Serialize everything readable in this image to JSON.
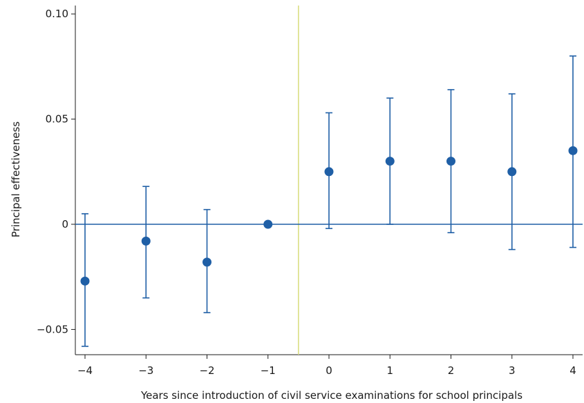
{
  "chart_data": {
    "type": "scatter",
    "title": "",
    "xlabel": "Years since introduction of civil service examinations for school principals",
    "ylabel": "Principal effectiveness",
    "xlim": [
      -4,
      4
    ],
    "ylim": [
      -0.062,
      0.104
    ],
    "x_ticks": [
      -4,
      -3,
      -2,
      -1,
      0,
      1,
      2,
      3,
      4
    ],
    "x_tick_labels": [
      "−4",
      "−3",
      "−2",
      "−1",
      "0",
      "1",
      "2",
      "3",
      "4"
    ],
    "y_ticks": [
      -0.05,
      0,
      0.05,
      0.1
    ],
    "y_tick_labels": [
      "−0.05",
      "0",
      "0.05",
      "0.10"
    ],
    "grid": false,
    "legend": "none",
    "reference_lines": {
      "horizontal_y": 0,
      "vertical_x": -0.5
    },
    "colors": {
      "points": "#1f5fa6",
      "reference_horizontal": "#1f5fa6",
      "reference_vertical": "#d8dc7a",
      "axis": "#1a1a1a"
    },
    "series": [
      {
        "x": [
          -4,
          -3,
          -2,
          -1,
          0,
          1,
          2,
          3,
          4
        ],
        "y": [
          -0.027,
          -0.008,
          -0.018,
          0.0,
          0.025,
          0.03,
          0.03,
          0.025,
          0.035
        ],
        "ci_low": [
          -0.058,
          -0.035,
          -0.042,
          0.0,
          -0.002,
          0.0,
          -0.004,
          -0.012,
          -0.011
        ],
        "ci_high": [
          0.005,
          0.018,
          0.007,
          0.0,
          0.053,
          0.06,
          0.064,
          0.062,
          0.08
        ]
      }
    ]
  }
}
